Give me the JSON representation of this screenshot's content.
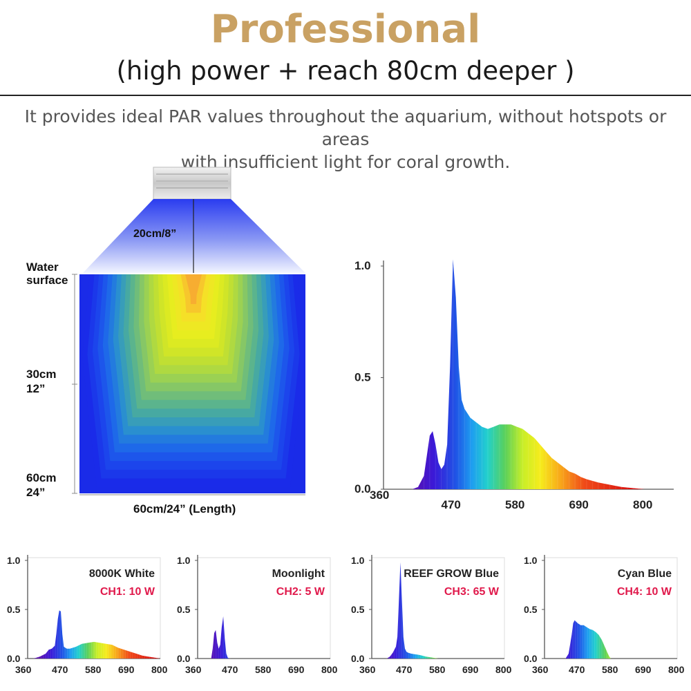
{
  "header": {
    "title": "Professional",
    "subtitle": "(high power + reach 80cm deeper )",
    "description_line1": "It provides ideal PAR values throughout the aquarium, without hotspots or areas",
    "description_line2": "with insufficient light for coral growth."
  },
  "colors": {
    "title_gold": "#c9a163",
    "channel_red": "#e0194b"
  },
  "tank": {
    "height_label": "20cm/8”",
    "surface_label_1": "Water",
    "surface_label_2": "surface",
    "depth_30_1": "30cm",
    "depth_30_2": "12”",
    "depth_60_1": "60cm",
    "depth_60_2": "24”",
    "length_label": "60cm/24”  (Length)"
  },
  "chart_data": [
    {
      "type": "area",
      "name": "main",
      "x_ticks": [
        "360",
        "470",
        "580",
        "690",
        "800"
      ],
      "y_ticks": [
        "0.0",
        "0.5",
        "1.0"
      ],
      "xlim": [
        360,
        800
      ],
      "ylim": [
        0,
        1
      ],
      "x": [
        400,
        410,
        420,
        425,
        430,
        435,
        440,
        445,
        450,
        455,
        460,
        465,
        470,
        475,
        480,
        485,
        490,
        500,
        510,
        520,
        530,
        540,
        550,
        560,
        570,
        580,
        590,
        600,
        610,
        620,
        630,
        640,
        650,
        660,
        670,
        680,
        690,
        700,
        720,
        740,
        760,
        780,
        800
      ],
      "y": [
        0.0,
        0.01,
        0.06,
        0.15,
        0.24,
        0.26,
        0.2,
        0.12,
        0.09,
        0.11,
        0.2,
        0.55,
        1.03,
        0.86,
        0.55,
        0.4,
        0.36,
        0.32,
        0.3,
        0.28,
        0.27,
        0.28,
        0.29,
        0.29,
        0.29,
        0.28,
        0.27,
        0.25,
        0.23,
        0.2,
        0.17,
        0.14,
        0.12,
        0.1,
        0.08,
        0.07,
        0.055,
        0.045,
        0.03,
        0.02,
        0.01,
        0.005,
        0.0
      ]
    },
    {
      "type": "area",
      "name": "8000K White",
      "channel": "CH1: 10 W",
      "x_ticks": [
        "360",
        "470",
        "580",
        "690",
        "800"
      ],
      "y_ticks": [
        "0.0",
        "0.5",
        "1.0"
      ],
      "xlim": [
        360,
        800
      ],
      "ylim": [
        0,
        1
      ],
      "x": [
        380,
        400,
        420,
        430,
        440,
        450,
        455,
        460,
        465,
        470,
        475,
        480,
        490,
        500,
        520,
        540,
        560,
        580,
        600,
        620,
        640,
        660,
        680,
        700,
        720,
        740,
        760,
        780,
        800
      ],
      "y": [
        0.0,
        0.02,
        0.05,
        0.09,
        0.1,
        0.13,
        0.25,
        0.4,
        0.49,
        0.48,
        0.25,
        0.12,
        0.1,
        0.1,
        0.12,
        0.15,
        0.16,
        0.17,
        0.16,
        0.15,
        0.14,
        0.11,
        0.09,
        0.07,
        0.05,
        0.03,
        0.02,
        0.01,
        0.0
      ]
    },
    {
      "type": "area",
      "name": "Moonlight",
      "channel": "CH2: 5 W",
      "x_ticks": [
        "360",
        "470",
        "580",
        "690",
        "800"
      ],
      "y_ticks": [
        "0.0",
        "0.5",
        "1.0"
      ],
      "xlim": [
        360,
        800
      ],
      "ylim": [
        0,
        1
      ],
      "x": [
        405,
        410,
        415,
        420,
        425,
        430,
        435,
        440,
        445,
        450,
        455,
        460,
        465,
        470
      ],
      "y": [
        0.0,
        0.1,
        0.26,
        0.29,
        0.16,
        0.1,
        0.14,
        0.32,
        0.43,
        0.2,
        0.05,
        0.01,
        0.0,
        0.0
      ]
    },
    {
      "type": "area",
      "name": "REEF GROW Blue",
      "channel": "CH3: 65 W",
      "x_ticks": [
        "360",
        "470",
        "580",
        "690",
        "800"
      ],
      "y_ticks": [
        "0.0",
        "0.5",
        "1.0"
      ],
      "xlim": [
        360,
        800
      ],
      "ylim": [
        0,
        1
      ],
      "x": [
        410,
        420,
        430,
        440,
        445,
        450,
        455,
        460,
        465,
        470,
        475,
        480,
        490,
        500,
        510,
        520,
        540,
        560,
        580
      ],
      "y": [
        0.0,
        0.02,
        0.06,
        0.12,
        0.22,
        0.6,
        0.98,
        0.6,
        0.22,
        0.1,
        0.07,
        0.06,
        0.05,
        0.045,
        0.04,
        0.035,
        0.02,
        0.01,
        0.0
      ]
    },
    {
      "type": "area",
      "name": "Cyan Blue",
      "channel": "CH4: 10 W",
      "x_ticks": [
        "360",
        "470",
        "580",
        "690",
        "800"
      ],
      "y_ticks": [
        "0.0",
        "0.5",
        "1.0"
      ],
      "xlim": [
        360,
        800
      ],
      "ylim": [
        0,
        1
      ],
      "x": [
        430,
        440,
        450,
        455,
        460,
        470,
        480,
        490,
        500,
        510,
        520,
        530,
        540,
        550,
        560,
        570,
        575,
        580
      ],
      "y": [
        0.0,
        0.05,
        0.24,
        0.36,
        0.39,
        0.36,
        0.34,
        0.34,
        0.32,
        0.3,
        0.29,
        0.27,
        0.24,
        0.19,
        0.12,
        0.05,
        0.02,
        0.0
      ]
    }
  ]
}
